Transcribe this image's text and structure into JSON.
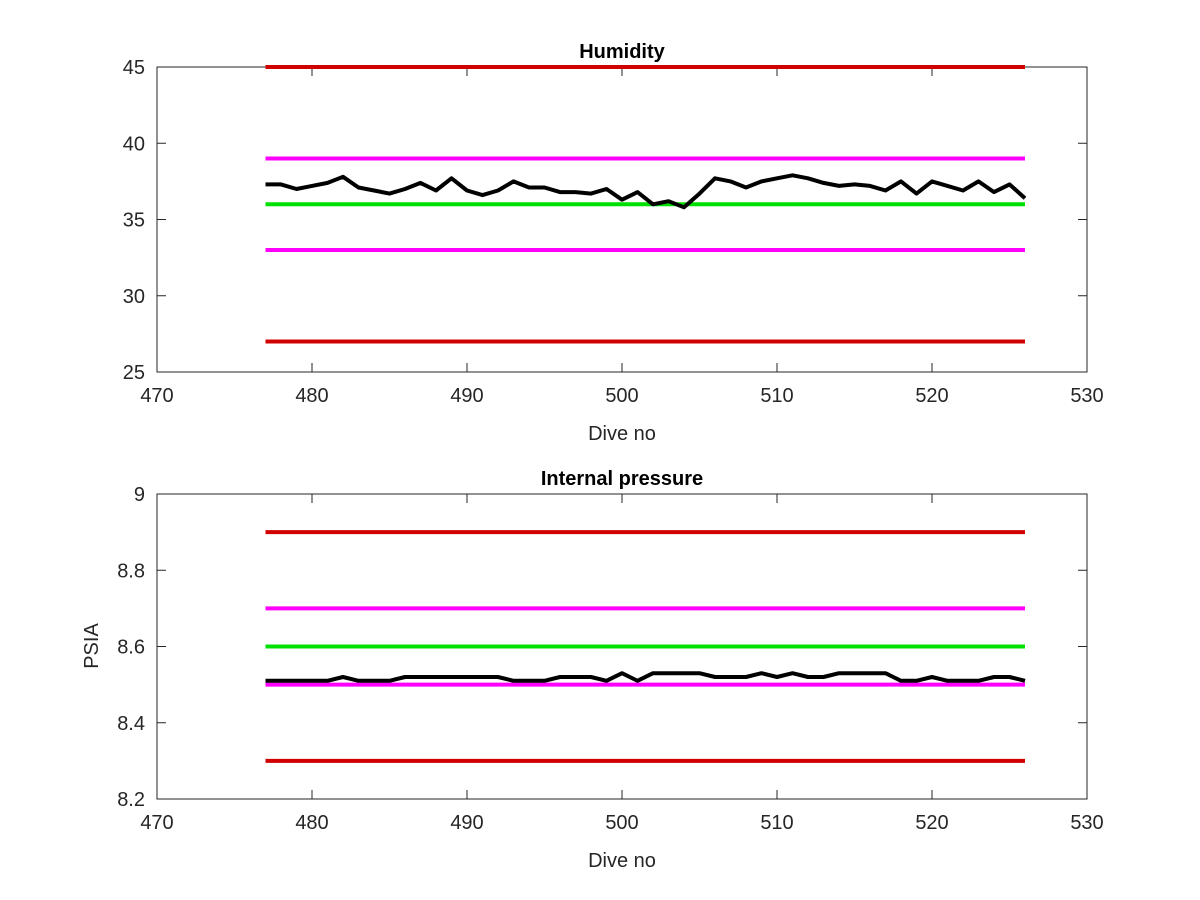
{
  "chart_data": [
    {
      "type": "line",
      "title": "Humidity",
      "xlabel": "Dive no",
      "ylabel": "",
      "xlim": [
        470,
        530
      ],
      "ylim": [
        25,
        45
      ],
      "xticks": [
        "470",
        "480",
        "490",
        "500",
        "510",
        "520",
        "530"
      ],
      "yticks": [
        "25",
        "30",
        "35",
        "40",
        "45"
      ],
      "grid": false,
      "series": [
        {
          "color": "#d00000",
          "x": [
            477,
            526
          ],
          "y": [
            45,
            45
          ]
        },
        {
          "color": "#ff00ff",
          "x": [
            477,
            526
          ],
          "y": [
            39,
            39
          ]
        },
        {
          "color": "#00e000",
          "x": [
            477,
            526
          ],
          "y": [
            36,
            36
          ]
        },
        {
          "color": "#ff00ff",
          "x": [
            477,
            526
          ],
          "y": [
            33,
            33
          ]
        },
        {
          "color": "#d00000",
          "x": [
            477,
            526
          ],
          "y": [
            27,
            27
          ]
        },
        {
          "color": "#000000",
          "x": [
            477,
            478,
            479,
            480,
            481,
            482,
            483,
            484,
            485,
            486,
            487,
            488,
            489,
            490,
            491,
            492,
            493,
            494,
            495,
            496,
            497,
            498,
            499,
            500,
            501,
            502,
            503,
            504,
            505,
            506,
            507,
            508,
            509,
            510,
            511,
            512,
            513,
            514,
            515,
            516,
            517,
            518,
            519,
            520,
            521,
            522,
            523,
            524,
            525,
            526
          ],
          "y": [
            37.3,
            37.3,
            37.0,
            37.2,
            37.4,
            37.8,
            37.1,
            36.9,
            36.7,
            37.0,
            37.4,
            36.9,
            37.7,
            36.9,
            36.6,
            36.9,
            37.5,
            37.1,
            37.1,
            36.8,
            36.8,
            36.7,
            37.0,
            36.3,
            36.8,
            36.0,
            36.2,
            35.8,
            36.7,
            37.7,
            37.5,
            37.1,
            37.5,
            37.7,
            37.9,
            37.7,
            37.4,
            37.2,
            37.3,
            37.2,
            36.9,
            37.5,
            36.7,
            37.5,
            37.2,
            36.9,
            37.5,
            36.8,
            37.3,
            36.4
          ]
        }
      ]
    },
    {
      "type": "line",
      "title": "Internal pressure",
      "xlabel": "Dive no",
      "ylabel": "PSIA",
      "xlim": [
        470,
        530
      ],
      "ylim": [
        8.2,
        9
      ],
      "xticks": [
        "470",
        "480",
        "490",
        "500",
        "510",
        "520",
        "530"
      ],
      "yticks": [
        "8.2",
        "8.4",
        "8.6",
        "8.8",
        "9"
      ],
      "grid": false,
      "series": [
        {
          "color": "#d00000",
          "x": [
            477,
            526
          ],
          "y": [
            8.9,
            8.9
          ]
        },
        {
          "color": "#ff00ff",
          "x": [
            477,
            526
          ],
          "y": [
            8.7,
            8.7
          ]
        },
        {
          "color": "#00e000",
          "x": [
            477,
            526
          ],
          "y": [
            8.6,
            8.6
          ]
        },
        {
          "color": "#ff00ff",
          "x": [
            477,
            526
          ],
          "y": [
            8.5,
            8.5
          ]
        },
        {
          "color": "#d00000",
          "x": [
            477,
            526
          ],
          "y": [
            8.3,
            8.3
          ]
        },
        {
          "color": "#000000",
          "x": [
            477,
            478,
            479,
            480,
            481,
            482,
            483,
            484,
            485,
            486,
            487,
            488,
            489,
            490,
            491,
            492,
            493,
            494,
            495,
            496,
            497,
            498,
            499,
            500,
            501,
            502,
            503,
            504,
            505,
            506,
            507,
            508,
            509,
            510,
            511,
            512,
            513,
            514,
            515,
            516,
            517,
            518,
            519,
            520,
            521,
            522,
            523,
            524,
            525,
            526
          ],
          "y": [
            8.51,
            8.51,
            8.51,
            8.51,
            8.51,
            8.52,
            8.51,
            8.51,
            8.51,
            8.52,
            8.52,
            8.52,
            8.52,
            8.52,
            8.52,
            8.52,
            8.51,
            8.51,
            8.51,
            8.52,
            8.52,
            8.52,
            8.51,
            8.53,
            8.51,
            8.53,
            8.53,
            8.53,
            8.53,
            8.52,
            8.52,
            8.52,
            8.53,
            8.52,
            8.53,
            8.52,
            8.52,
            8.53,
            8.53,
            8.53,
            8.53,
            8.51,
            8.51,
            8.52,
            8.51,
            8.51,
            8.51,
            8.52,
            8.52,
            8.51
          ]
        }
      ]
    }
  ]
}
